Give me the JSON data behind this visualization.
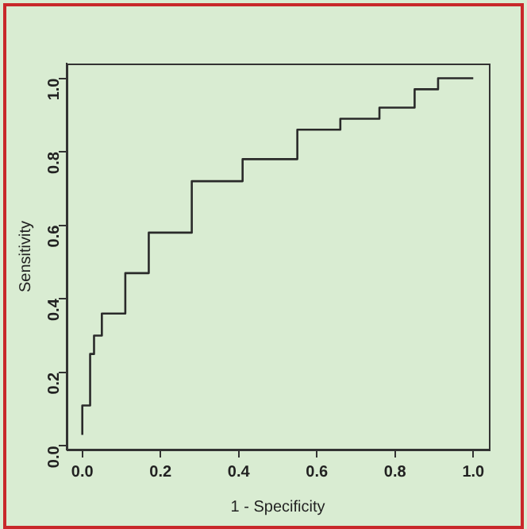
{
  "chart_data": {
    "type": "step",
    "xlabel": "1 - Specificity",
    "ylabel": "Sensitivity",
    "x": [
      0,
      0,
      0.02,
      0.03,
      0.05,
      0.11,
      0.17,
      0.28,
      0.41,
      0.55,
      0.66,
      0.76,
      0.85,
      0.91,
      1.0
    ],
    "series": [
      {
        "color": "#2a2a2a",
        "values": [
          0.03,
          0.11,
          0.25,
          0.3,
          0.36,
          0.47,
          0.58,
          0.72,
          0.78,
          0.86,
          0.89,
          0.92,
          0.97,
          1.0,
          1.0
        ]
      }
    ],
    "xlim": [
      -0.04,
      1.04
    ],
    "ylim": [
      -0.01,
      1.04
    ],
    "xticks": [
      {
        "value": 0,
        "label": "0.0"
      },
      {
        "value": 0.2,
        "label": "0.2"
      },
      {
        "value": 0.4,
        "label": "0.4"
      },
      {
        "value": 0.6,
        "label": "0.6"
      },
      {
        "value": 0.8,
        "label": "0.8"
      },
      {
        "value": 1,
        "label": "1.0"
      }
    ],
    "yticks": [
      {
        "value": 0,
        "label": "0.0"
      },
      {
        "value": 0.2,
        "label": "0.2"
      },
      {
        "value": 0.4,
        "label": "0.4"
      },
      {
        "value": 0.6,
        "label": "0.6"
      },
      {
        "value": 0.8,
        "label": "0.8"
      },
      {
        "value": 1,
        "label": "1.0"
      }
    ],
    "grid": false,
    "legend": false,
    "marker": "none",
    "line_style": "solid"
  }
}
